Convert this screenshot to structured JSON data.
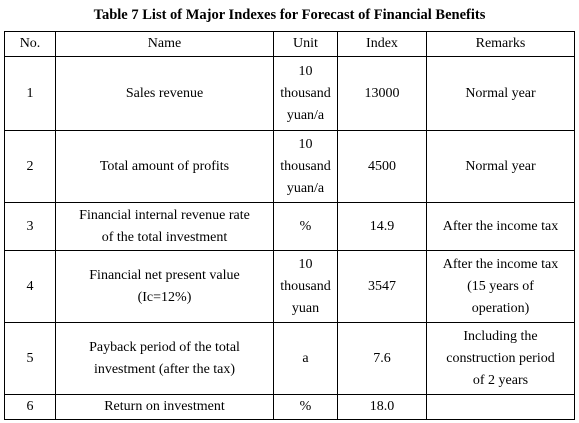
{
  "caption": "Table 7 List of Major Indexes for Forecast of Financial Benefits",
  "headers": {
    "no": "No.",
    "name": "Name",
    "unit": "Unit",
    "index": "Index",
    "remarks": "Remarks"
  },
  "rows": [
    {
      "no": "1",
      "name": "Sales revenue",
      "unit": "10\nthousand\nyuan/a",
      "index": "13000",
      "remarks": "Normal year"
    },
    {
      "no": "2",
      "name": "Total amount of profits",
      "unit": "10\nthousand\nyuan/a",
      "index": "4500",
      "remarks": "Normal year"
    },
    {
      "no": "3",
      "name": "Financial internal revenue rate\nof the total investment",
      "unit": "%",
      "index": "14.9",
      "remarks": "After the income tax"
    },
    {
      "no": "4",
      "name": "Financial net present value\n(Ic=12%)",
      "unit": "10\nthousand\nyuan",
      "index": "3547",
      "remarks": "After the income tax\n(15 years of\noperation)"
    },
    {
      "no": "5",
      "name": "Payback period of the total\ninvestment (after the tax)",
      "unit": "a",
      "index": "7.6",
      "remarks": "Including the\nconstruction period\nof 2 years"
    },
    {
      "no": "6",
      "name": "Return on investment",
      "unit": "%",
      "index": "18.0",
      "remarks": ""
    }
  ]
}
